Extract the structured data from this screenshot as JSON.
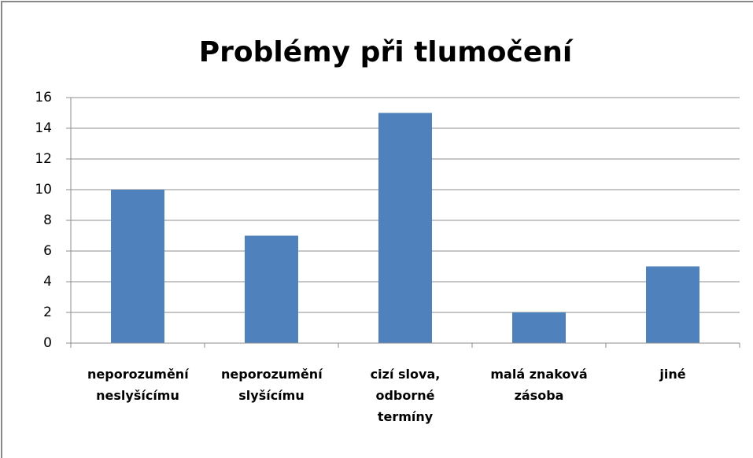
{
  "chart_data": {
    "type": "bar",
    "title": "Problémy při tlumočení",
    "categories": [
      "neporozumění neslyšícímu",
      "neporozumění slyšícímu",
      "cizí slova, odborné termíny",
      "malá znaková zásoba",
      "jiné"
    ],
    "values": [
      10,
      7,
      15,
      2,
      5
    ],
    "color": "#4f81bd",
    "ylim": [
      0,
      16
    ],
    "yticks": [
      0,
      2,
      4,
      6,
      8,
      10,
      12,
      14,
      16
    ],
    "grid": true
  }
}
